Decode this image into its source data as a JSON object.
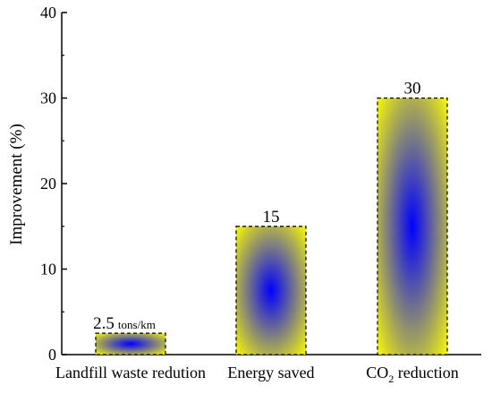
{
  "chart_data": {
    "type": "bar",
    "categories": [
      "Landfill waste redution",
      "Energy saved",
      "CO2 reduction"
    ],
    "values": [
      2.5,
      15,
      30
    ],
    "data_labels": [
      "2.5",
      "15",
      "30"
    ],
    "data_label_unit": "tons/km",
    "ylabel": "Improvement (%)",
    "ylim": [
      0,
      40
    ],
    "yticks": [
      0,
      10,
      20,
      30,
      40
    ],
    "yticks_text": [
      "0",
      "10",
      "20",
      "30",
      "40"
    ],
    "co2": {
      "prefix": "CO",
      "subscript": "2",
      "suffix": " reduction"
    },
    "grid": false,
    "bar_fill_outer": "#ffff00",
    "bar_fill_center": "#0000ff",
    "bar_border": "#000000"
  }
}
